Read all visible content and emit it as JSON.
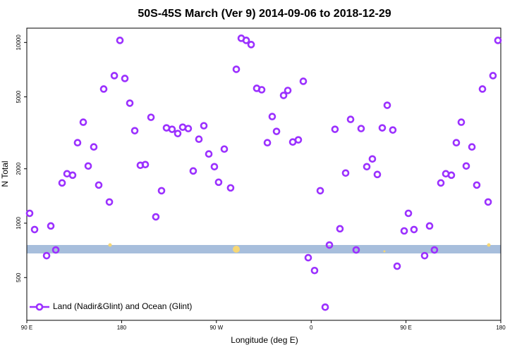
{
  "chart_data": {
    "type": "scatter",
    "title": "50S-45S March (Ver 9)   2014-09-06 to 2018-12-29",
    "xlabel": "Longitude (deg E)",
    "ylabel": "N Total",
    "ylog": true,
    "legend": "lower left",
    "xlim": [
      90,
      540
    ],
    "ylim": [
      290,
      12000
    ],
    "xticks": [
      {
        "value": 90,
        "label": "90 E"
      },
      180,
      {
        "value": 270,
        "label": "90 W"
      },
      {
        "value": 360,
        "label": "0"
      },
      {
        "value": 450,
        "label": "90 E"
      },
      {
        "value": 540,
        "label": "180"
      }
    ],
    "yticks": [
      500,
      1000,
      2000,
      5000,
      10000
    ],
    "x": [
      92.7,
      97.4,
      108.8,
      112.8,
      117.5,
      123.5,
      128.2,
      133.5,
      138.2,
      143.6,
      148.3,
      153.6,
      158.3,
      163.0,
      168.4,
      173.1,
      178.4,
      183.1,
      187.8,
      192.5,
      197.8,
      202.5,
      207.9,
      212.5,
      217.9,
      222.6,
      227.9,
      233.3,
      238.0,
      243.3,
      248.0,
      253.4,
      258.1,
      262.8,
      268.1,
      272.1,
      277.5,
      283.5,
      288.9,
      293.6,
      298.3,
      303.0,
      308.3,
      313.0,
      318.4,
      323.0,
      327.1,
      333.8,
      337.8,
      342.5,
      347.8,
      352.5,
      357.2,
      363.2,
      368.6,
      373.3,
      377.3,
      382.6,
      387.3,
      392.7,
      397.4,
      402.7,
      407.4,
      412.8,
      418.1,
      422.8,
      427.5,
      432.2,
      437.5,
      441.6,
      448.3,
      452.3,
      457.6,
      467.7,
      472.4,
      477.0,
      483.1,
      487.8,
      493.1,
      497.8,
      502.5,
      507.2,
      512.6,
      517.2,
      522.6,
      528.0,
      532.6,
      537.3
    ],
    "series": [
      {
        "name": "Land (Nadir&Glint) and Ocean (Glint)",
        "color": "#9b30ff",
        "values": [
          1134,
          922,
          661,
          965,
          711,
          1670,
          1877,
          1843,
          2788,
          3620,
          2072,
          2642,
          1625,
          5524,
          1310,
          6551,
          10270,
          6320,
          4615,
          3249,
          2091,
          2110,
          3854,
          1084,
          1512,
          3368,
          3308,
          3134,
          3398,
          3338,
          1945,
          2916,
          3460,
          2415,
          2054,
          1685,
          2571,
          1568,
          7105,
          10550,
          10270,
          9734,
          5574,
          5474,
          2788,
          3890,
          3220,
          5093,
          5425,
          2813,
          2891,
          6099,
          644,
          547,
          1512,
          343,
          757,
          3308,
          931,
          1894,
          3752,
          711,
          3338,
          2054,
          2267,
          1860,
          3368,
          4492,
          3278,
          578,
          906,
          1134,
          922,
          661,
          965,
          711,
          1670,
          1877,
          1843,
          2788,
          3620,
          2072,
          2642,
          1625,
          5524,
          1310,
          6551,
          10270
        ]
      }
    ]
  }
}
